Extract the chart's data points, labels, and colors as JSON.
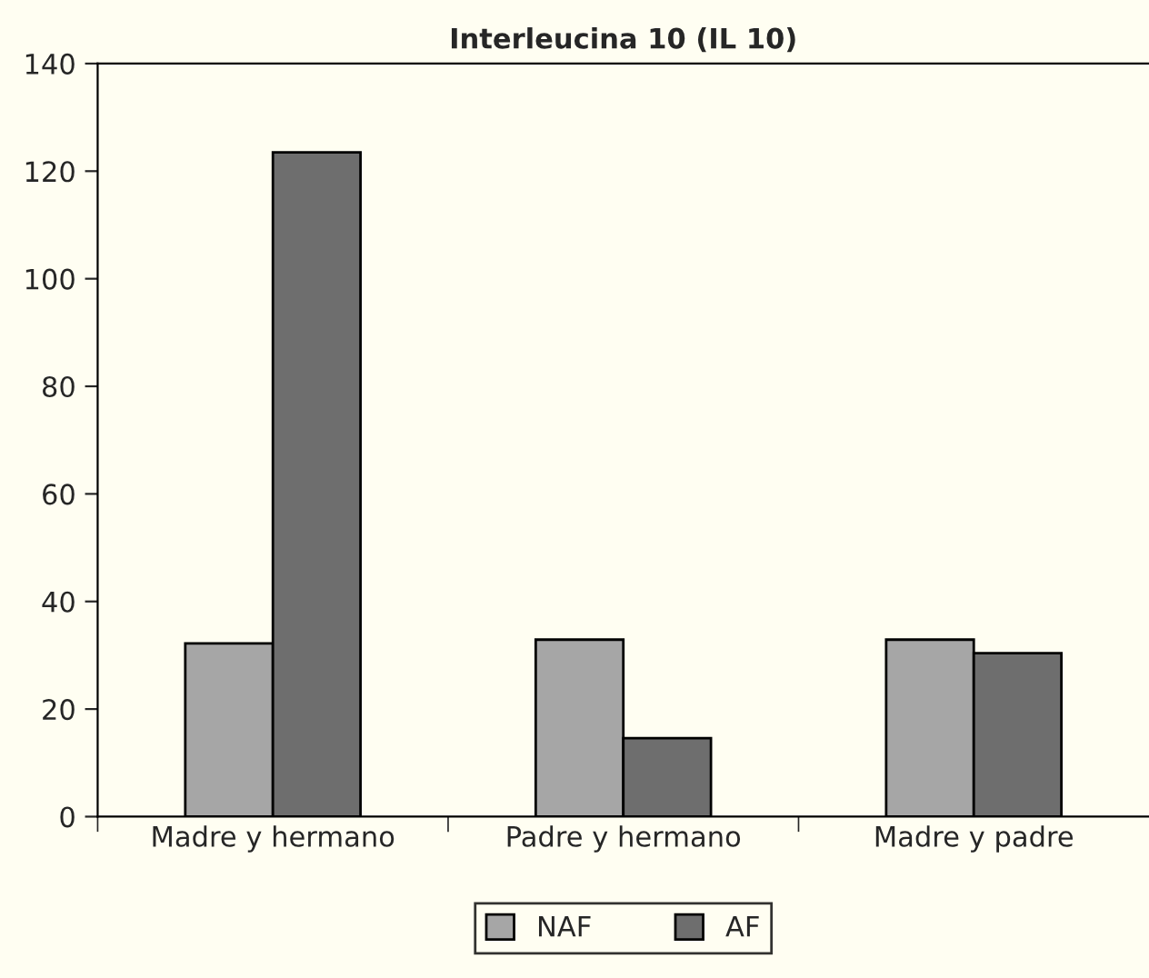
{
  "chart_data": {
    "type": "bar",
    "title": "Interleucina 10 (IL 10)",
    "categories": [
      "Madre y hermano",
      "Padre y hermano",
      "Madre y padre"
    ],
    "series": [
      {
        "name": "NAF",
        "color": "#a6a6a6",
        "values": [
          32.2,
          32.9,
          32.9
        ]
      },
      {
        "name": "AF",
        "color": "#6e6e6e",
        "values": [
          123.5,
          14.6,
          30.4
        ]
      }
    ],
    "ylim": [
      0,
      140
    ],
    "yticks": [
      0,
      20,
      40,
      60,
      80,
      100,
      120,
      140
    ],
    "grid": false,
    "legend": "bottom"
  }
}
